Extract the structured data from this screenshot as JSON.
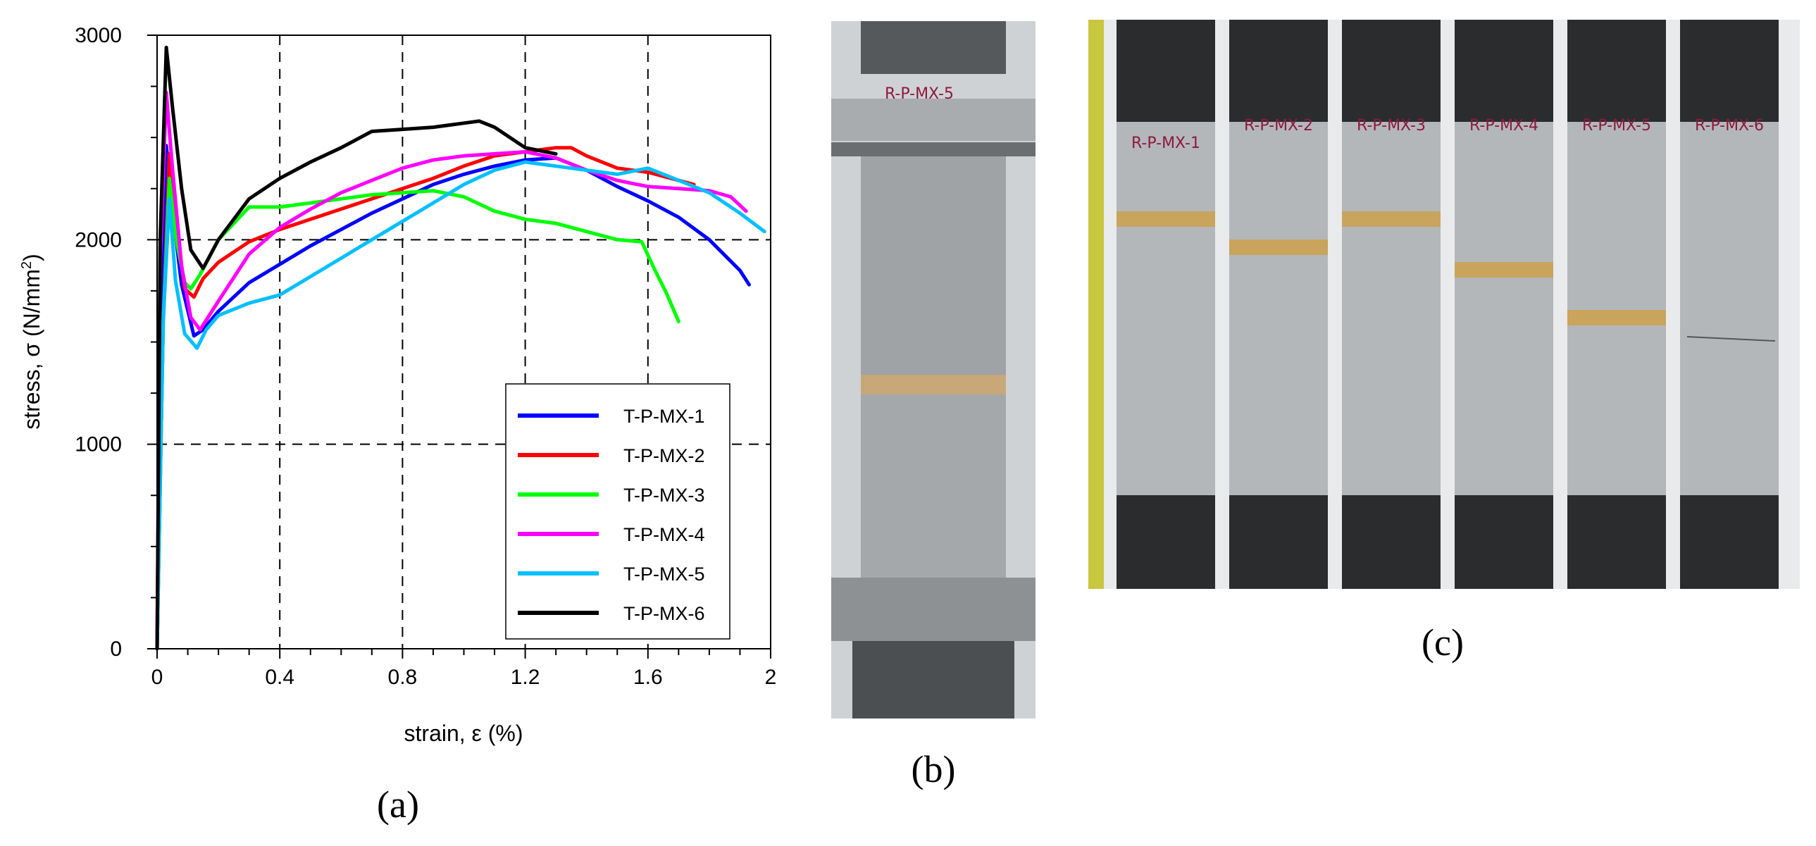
{
  "captions": {
    "a": "(a)",
    "b": "(b)",
    "c": "(c)"
  },
  "chart_data": {
    "type": "line",
    "xlabel": "strain, ε (%)",
    "ylabel_main": "stress, σ (N/mm",
    "ylabel_sup": "2",
    "ylabel_end": ")",
    "xlim": [
      0,
      2
    ],
    "ylim": [
      0,
      3000
    ],
    "xticks": [
      0,
      0.4,
      0.8,
      1.2,
      1.6,
      2
    ],
    "xtick_labels": [
      "0",
      "0.4",
      "0.8",
      "1.2",
      "1.6",
      "2"
    ],
    "yticks": [
      0,
      1000,
      2000,
      3000
    ],
    "ytick_labels": [
      "0",
      "1000",
      "2000",
      "3000"
    ],
    "grid": "dashed",
    "legend_position": "bottom-right",
    "series": [
      {
        "name": "T-P-MX-1",
        "color": "#0000ff",
        "x": [
          0,
          0.02,
          0.03,
          0.05,
          0.08,
          0.12,
          0.15,
          0.2,
          0.3,
          0.4,
          0.5,
          0.6,
          0.7,
          0.8,
          0.9,
          1.0,
          1.1,
          1.2,
          1.3,
          1.4,
          1.5,
          1.6,
          1.7,
          1.8,
          1.9,
          1.93
        ],
        "y": [
          0,
          1800,
          2460,
          2150,
          1780,
          1530,
          1560,
          1650,
          1790,
          1880,
          1970,
          2050,
          2130,
          2200,
          2270,
          2320,
          2360,
          2390,
          2400,
          2340,
          2260,
          2190,
          2110,
          2000,
          1850,
          1780
        ]
      },
      {
        "name": "T-P-MX-2",
        "color": "#ff0000",
        "x": [
          0,
          0.02,
          0.04,
          0.06,
          0.09,
          0.12,
          0.15,
          0.2,
          0.3,
          0.4,
          0.5,
          0.6,
          0.7,
          0.8,
          0.9,
          1.0,
          1.1,
          1.2,
          1.3,
          1.35,
          1.4,
          1.5,
          1.6,
          1.7,
          1.75
        ],
        "y": [
          0,
          1600,
          2420,
          2100,
          1760,
          1720,
          1810,
          1890,
          1990,
          2050,
          2100,
          2150,
          2200,
          2250,
          2300,
          2360,
          2410,
          2430,
          2450,
          2450,
          2410,
          2350,
          2330,
          2290,
          2270
        ]
      },
      {
        "name": "T-P-MX-3",
        "color": "#00ff00",
        "x": [
          0,
          0.02,
          0.04,
          0.06,
          0.09,
          0.11,
          0.14,
          0.2,
          0.3,
          0.4,
          0.5,
          0.6,
          0.7,
          0.8,
          0.9,
          1.0,
          1.1,
          1.2,
          1.3,
          1.4,
          1.5,
          1.58,
          1.62,
          1.66,
          1.7
        ],
        "y": [
          0,
          1600,
          2300,
          2020,
          1790,
          1760,
          1830,
          2000,
          2160,
          2160,
          2180,
          2200,
          2220,
          2230,
          2240,
          2210,
          2140,
          2100,
          2080,
          2040,
          2000,
          1990,
          1860,
          1740,
          1600
        ]
      },
      {
        "name": "T-P-MX-4",
        "color": "#ff00ff",
        "x": [
          0,
          0.01,
          0.03,
          0.05,
          0.08,
          0.11,
          0.14,
          0.2,
          0.3,
          0.4,
          0.5,
          0.6,
          0.7,
          0.8,
          0.9,
          1.0,
          1.1,
          1.2,
          1.3,
          1.4,
          1.5,
          1.6,
          1.7,
          1.8,
          1.87,
          1.92
        ],
        "y": [
          0,
          1900,
          2720,
          2350,
          1870,
          1620,
          1560,
          1700,
          1930,
          2060,
          2150,
          2230,
          2290,
          2350,
          2390,
          2410,
          2420,
          2430,
          2400,
          2340,
          2290,
          2260,
          2250,
          2240,
          2210,
          2140
        ]
      },
      {
        "name": "T-P-MX-5",
        "color": "#00bfff",
        "x": [
          0,
          0.02,
          0.04,
          0.06,
          0.09,
          0.13,
          0.16,
          0.2,
          0.3,
          0.4,
          0.5,
          0.6,
          0.7,
          0.8,
          0.9,
          1.0,
          1.1,
          1.2,
          1.3,
          1.4,
          1.5,
          1.6,
          1.7,
          1.8,
          1.9,
          1.98
        ],
        "y": [
          0,
          1600,
          2200,
          1800,
          1540,
          1470,
          1560,
          1630,
          1690,
          1730,
          1820,
          1910,
          2000,
          2090,
          2180,
          2270,
          2340,
          2380,
          2360,
          2340,
          2320,
          2350,
          2290,
          2230,
          2130,
          2040
        ]
      },
      {
        "name": "T-P-MX-6",
        "color": "#000000",
        "x": [
          0,
          0.01,
          0.03,
          0.05,
          0.08,
          0.11,
          0.15,
          0.2,
          0.3,
          0.4,
          0.5,
          0.6,
          0.7,
          0.8,
          0.9,
          1.0,
          1.05,
          1.1,
          1.2,
          1.3
        ],
        "y": [
          0,
          2000,
          2940,
          2650,
          2250,
          1950,
          1860,
          2000,
          2200,
          2300,
          2380,
          2450,
          2530,
          2540,
          2550,
          2570,
          2580,
          2550,
          2450,
          2420
        ]
      }
    ]
  },
  "photo_b": {
    "label": "R-P-MX-5"
  },
  "photo_c": {
    "labels": [
      "R-P-MX-1",
      "R-P-MX-2",
      "R-P-MX-3",
      "R-P-MX-4",
      "R-P-MX-5",
      "R-P-MX-6"
    ]
  }
}
